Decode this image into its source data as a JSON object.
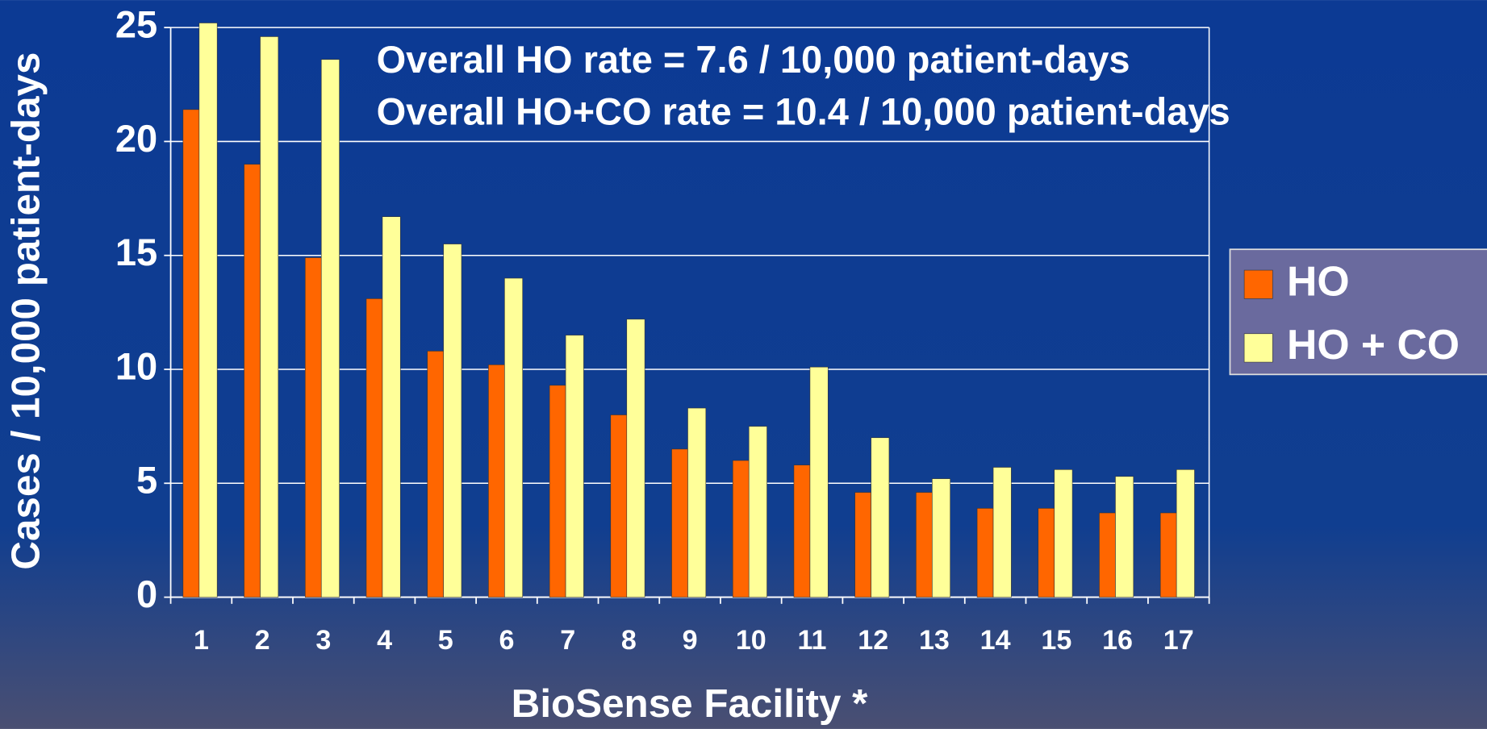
{
  "chart_data": {
    "type": "bar",
    "annotations": [
      "Overall HO rate = 7.6 / 10,000 patient-days",
      "Overall HO+CO rate = 10.4 / 10,000 patient-days"
    ],
    "x_label": "BioSense Facility *",
    "y_label": "Cases / 10,000 patient-days",
    "categories": [
      "1",
      "2",
      "3",
      "4",
      "5",
      "6",
      "7",
      "8",
      "9",
      "10",
      "11",
      "12",
      "13",
      "14",
      "15",
      "16",
      "17"
    ],
    "series": [
      {
        "name": "HO",
        "color": "#ff6600",
        "values": [
          21.4,
          19.0,
          14.9,
          13.1,
          10.8,
          10.2,
          9.3,
          8.0,
          6.5,
          6.0,
          5.8,
          4.6,
          4.6,
          3.9,
          3.9,
          3.7,
          3.7
        ]
      },
      {
        "name": "HO + CO",
        "color": "#ffff99",
        "values": [
          25.2,
          24.6,
          23.6,
          16.7,
          15.5,
          14.0,
          11.5,
          12.2,
          8.3,
          7.5,
          10.1,
          7.0,
          5.2,
          5.7,
          5.6,
          5.3,
          5.6
        ]
      }
    ],
    "ylim": [
      0,
      25
    ],
    "yticks": [
      0,
      5,
      10,
      15,
      20,
      25
    ],
    "grid": true,
    "legend": "right"
  }
}
